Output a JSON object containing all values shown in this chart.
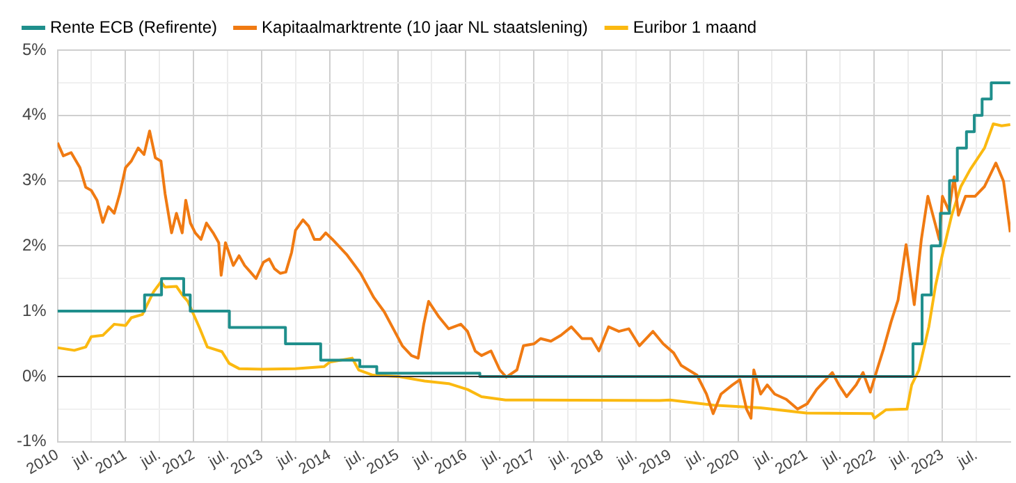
{
  "chart_data": {
    "type": "line",
    "legend": "top",
    "grid": true,
    "marker": "none",
    "line_style": "solid",
    "xlim": [
      "2010-01-01",
      "2024-01-01"
    ],
    "xticks": [
      {
        "value": "2010-01-01",
        "label": "2010"
      },
      {
        "value": "2010-07-01",
        "label": "jul."
      },
      {
        "value": "2011-01-01",
        "label": "2011"
      },
      {
        "value": "2011-07-01",
        "label": "jul."
      },
      {
        "value": "2012-01-01",
        "label": "2012"
      },
      {
        "value": "2012-07-01",
        "label": "jul."
      },
      {
        "value": "2013-01-01",
        "label": "2013"
      },
      {
        "value": "2013-07-01",
        "label": "jul."
      },
      {
        "value": "2014-01-01",
        "label": "2014"
      },
      {
        "value": "2014-07-01",
        "label": "jul."
      },
      {
        "value": "2015-01-01",
        "label": "2015"
      },
      {
        "value": "2015-07-01",
        "label": "jul."
      },
      {
        "value": "2016-01-01",
        "label": "2016"
      },
      {
        "value": "2016-07-01",
        "label": "jul."
      },
      {
        "value": "2017-01-01",
        "label": "2017"
      },
      {
        "value": "2017-07-01",
        "label": "jul."
      },
      {
        "value": "2018-01-01",
        "label": "2018"
      },
      {
        "value": "2018-07-01",
        "label": "jul."
      },
      {
        "value": "2019-01-01",
        "label": "2019"
      },
      {
        "value": "2019-07-01",
        "label": "jul."
      },
      {
        "value": "2020-01-01",
        "label": "2020"
      },
      {
        "value": "2020-07-01",
        "label": "jul."
      },
      {
        "value": "2021-01-01",
        "label": "2021"
      },
      {
        "value": "2021-07-01",
        "label": "jul."
      },
      {
        "value": "2022-01-01",
        "label": "2022"
      },
      {
        "value": "2022-07-01",
        "label": "jul."
      },
      {
        "value": "2023-01-01",
        "label": "2023"
      },
      {
        "value": "2023-07-01",
        "label": "jul."
      }
    ],
    "ylim": [
      -1,
      5
    ],
    "yticks": [
      {
        "value": -1,
        "label": "-1%"
      },
      {
        "value": -0.5,
        "label": null
      },
      {
        "value": 0,
        "label": "0%"
      },
      {
        "value": 0.5,
        "label": null
      },
      {
        "value": 1,
        "label": "1%"
      },
      {
        "value": 1.5,
        "label": null
      },
      {
        "value": 2,
        "label": "2%"
      },
      {
        "value": 2.5,
        "label": null
      },
      {
        "value": 3,
        "label": "3%"
      },
      {
        "value": 3.5,
        "label": null
      },
      {
        "value": 4,
        "label": "4%"
      },
      {
        "value": 4.5,
        "label": null
      },
      {
        "value": 5,
        "label": "5%"
      }
    ],
    "ref_lines": [
      {
        "axis": "y",
        "value": 0,
        "color": "#333333"
      }
    ],
    "series": [
      {
        "name": "Rente ECB (Refirente)",
        "type": "step",
        "color": "#1f8f8c",
        "x": [
          "2010-01-01",
          "2011-04-13",
          "2011-07-13",
          "2011-11-09",
          "2011-12-14",
          "2012-07-11",
          "2013-05-08",
          "2013-11-13",
          "2014-06-11",
          "2014-09-10",
          "2016-03-16",
          "2022-07-27",
          "2022-09-14",
          "2022-11-02",
          "2022-12-21",
          "2023-02-08",
          "2023-03-22",
          "2023-05-10",
          "2023-06-21",
          "2023-08-02",
          "2023-09-20",
          "2023-12-31"
        ],
        "values": [
          1,
          1.25,
          1.5,
          1.25,
          1,
          0.75,
          0.5,
          0.25,
          0.15,
          0.05,
          0,
          0.5,
          1.25,
          2,
          2.5,
          3,
          3.5,
          3.75,
          4,
          4.25,
          4.5,
          4.5
        ]
      },
      {
        "name": "Kapitaalmarktrente (10 jaar NL staatslening)",
        "color": "#f07a12",
        "x": [
          "2010-01-01",
          "2010-02-01",
          "2010-03-15",
          "2010-05-01",
          "2010-06-01",
          "2010-07-01",
          "2010-08-01",
          "2010-09-01",
          "2010-10-01",
          "2010-11-01",
          "2010-12-01",
          "2011-01-01",
          "2011-02-01",
          "2011-03-10",
          "2011-04-10",
          "2011-05-10",
          "2011-06-10",
          "2011-07-10",
          "2011-08-01",
          "2011-09-05",
          "2011-10-01",
          "2011-11-01",
          "2011-11-20",
          "2011-12-15",
          "2012-01-10",
          "2012-02-10",
          "2012-03-10",
          "2012-04-15",
          "2012-05-15",
          "2012-05-28",
          "2012-06-20",
          "2012-08-01",
          "2012-09-01",
          "2012-10-01",
          "2012-11-01",
          "2012-12-01",
          "2013-01-10",
          "2013-02-10",
          "2013-03-10",
          "2013-04-10",
          "2013-05-10",
          "2013-06-10",
          "2013-07-01",
          "2013-08-10",
          "2013-09-10",
          "2013-10-10",
          "2013-11-10",
          "2013-12-10",
          "2014-01-15",
          "2014-04-01",
          "2014-06-15",
          "2014-08-25",
          "2014-10-20",
          "2014-12-15",
          "2015-01-25",
          "2015-03-15",
          "2015-04-20",
          "2015-05-20",
          "2015-06-15",
          "2015-08-10",
          "2015-10-01",
          "2015-12-05",
          "2016-01-10",
          "2016-02-20",
          "2016-03-25",
          "2016-05-15",
          "2016-07-01",
          "2016-08-05",
          "2016-10-01",
          "2016-11-05",
          "2017-01-01",
          "2017-02-05",
          "2017-04-01",
          "2017-05-25",
          "2017-07-20",
          "2017-09-15",
          "2017-11-05",
          "2017-12-15",
          "2018-02-05",
          "2018-04-01",
          "2018-05-25",
          "2018-07-20",
          "2018-10-01",
          "2018-11-25",
          "2019-01-20",
          "2019-03-01",
          "2019-05-25",
          "2019-07-15",
          "2019-08-20",
          "2019-10-01",
          "2019-12-01",
          "2020-01-10",
          "2020-02-15",
          "2020-03-10",
          "2020-03-25",
          "2020-05-01",
          "2020-06-05",
          "2020-07-15",
          "2020-09-15",
          "2020-11-15",
          "2021-01-05",
          "2021-02-25",
          "2021-04-15",
          "2021-05-20",
          "2021-06-25",
          "2021-08-05",
          "2021-09-25",
          "2021-11-01",
          "2021-12-10",
          "2022-01-15",
          "2022-02-20",
          "2022-04-01",
          "2022-05-08",
          "2022-06-20",
          "2022-07-08",
          "2022-08-03",
          "2022-09-10",
          "2022-10-15",
          "2022-11-25",
          "2022-12-15",
          "2023-01-01",
          "2023-02-05",
          "2023-03-05",
          "2023-03-28",
          "2023-05-05",
          "2023-06-25",
          "2023-08-15",
          "2023-10-15",
          "2023-11-25",
          "2023-12-31"
        ],
        "values": [
          3.58,
          3.38,
          3.43,
          3.2,
          2.9,
          2.85,
          2.7,
          2.36,
          2.6,
          2.5,
          2.8,
          3.2,
          3.3,
          3.5,
          3.4,
          3.76,
          3.35,
          3.3,
          2.8,
          2.2,
          2.5,
          2.2,
          2.7,
          2.35,
          2.2,
          2.1,
          2.35,
          2.2,
          2.05,
          1.55,
          2.05,
          1.7,
          1.85,
          1.7,
          1.6,
          1.5,
          1.75,
          1.8,
          1.65,
          1.58,
          1.6,
          1.9,
          2.24,
          2.4,
          2.3,
          2.1,
          2.1,
          2.2,
          2.1,
          1.87,
          1.58,
          1.21,
          0.99,
          0.69,
          0.47,
          0.32,
          0.28,
          0.8,
          1.15,
          0.91,
          0.73,
          0.8,
          0.69,
          0.39,
          0.32,
          0.39,
          0.1,
          -0.01,
          0.1,
          0.47,
          0.5,
          0.58,
          0.54,
          0.63,
          0.76,
          0.58,
          0.58,
          0.39,
          0.76,
          0.69,
          0.73,
          0.47,
          0.69,
          0.5,
          0.36,
          0.17,
          0.02,
          -0.27,
          -0.57,
          -0.27,
          -0.13,
          -0.05,
          -0.5,
          -0.64,
          0.1,
          -0.27,
          -0.13,
          -0.27,
          -0.35,
          -0.5,
          -0.42,
          -0.2,
          -0.05,
          0.06,
          -0.13,
          -0.31,
          -0.13,
          0.06,
          -0.24,
          0.1,
          0.43,
          0.84,
          1.17,
          2.02,
          1.65,
          1.1,
          2.1,
          2.76,
          2.32,
          2.1,
          2.76,
          2.54,
          3.06,
          2.47,
          2.76,
          2.76,
          2.91,
          3.27,
          2.99,
          2.21
        ]
      },
      {
        "name": "Euribor 1 maand",
        "color": "#fbb910",
        "x": [
          "2010-01-01",
          "2010-04-01",
          "2010-06-01",
          "2010-07-01",
          "2010-09-01",
          "2010-11-01",
          "2011-01-01",
          "2011-02-01",
          "2011-04-01",
          "2011-06-01",
          "2011-07-10",
          "2011-08-01",
          "2011-10-01",
          "2011-11-01",
          "2011-12-01",
          "2012-02-01",
          "2012-03-15",
          "2012-06-01",
          "2012-07-10",
          "2012-09-01",
          "2013-01-01",
          "2013-07-01",
          "2013-12-01",
          "2014-01-01",
          "2014-05-01",
          "2014-06-05",
          "2014-08-20",
          "2015-01-01",
          "2015-05-25",
          "2015-10-01",
          "2016-01-10",
          "2016-03-25",
          "2016-08-01",
          "2018-11-05",
          "2019-01-01",
          "2019-08-25",
          "2020-05-01",
          "2021-01-01",
          "2021-12-20",
          "2022-01-01",
          "2022-03-05",
          "2022-06-25",
          "2022-07-20",
          "2022-08-28",
          "2022-10-20",
          "2022-11-25",
          "2023-01-01",
          "2023-02-20",
          "2023-04-10",
          "2023-05-30",
          "2023-08-15",
          "2023-10-01",
          "2023-11-15",
          "2023-12-31"
        ],
        "values": [
          0.44,
          0.4,
          0.45,
          0.61,
          0.63,
          0.8,
          0.78,
          0.9,
          0.95,
          1.3,
          1.45,
          1.37,
          1.38,
          1.25,
          1.15,
          0.75,
          0.45,
          0.38,
          0.2,
          0.12,
          0.11,
          0.12,
          0.15,
          0.22,
          0.28,
          0.1,
          0.02,
          0,
          -0.07,
          -0.11,
          -0.2,
          -0.31,
          -0.36,
          -0.37,
          -0.36,
          -0.44,
          -0.48,
          -0.56,
          -0.57,
          -0.64,
          -0.51,
          -0.5,
          -0.13,
          0.1,
          0.76,
          1.39,
          1.87,
          2.47,
          2.91,
          3.17,
          3.5,
          3.87,
          3.84,
          3.86
        ]
      }
    ]
  }
}
